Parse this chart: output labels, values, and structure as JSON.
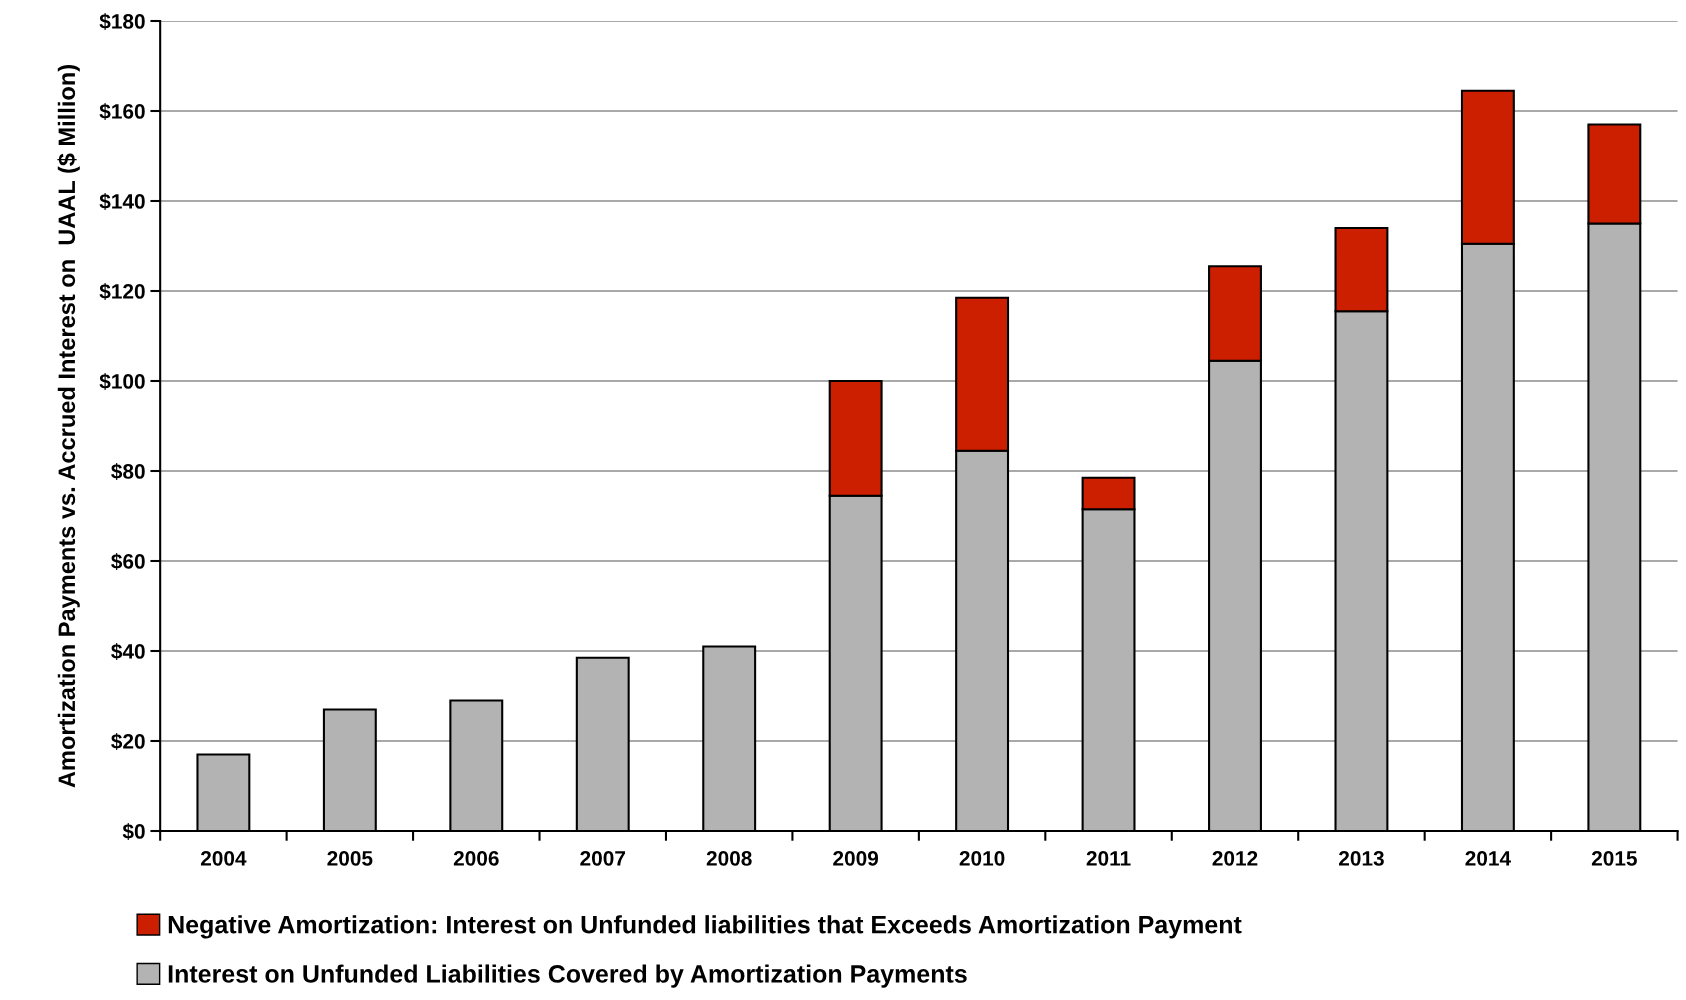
{
  "chart_data": {
    "type": "bar",
    "stacked": true,
    "ylabel": "Amortization Payments vs. Accrued Interest on  UAAL ($ Million)",
    "categories": [
      "2004",
      "2005",
      "2006",
      "2007",
      "2008",
      "2009",
      "2010",
      "2011",
      "2012",
      "2013",
      "2014",
      "2015"
    ],
    "series": [
      {
        "name": "Interest on Unfunded Liabilities Covered by Amortization Payments",
        "color": "#b3b3b3",
        "values": [
          17,
          27,
          29,
          38.5,
          41,
          74.5,
          84.5,
          71.5,
          104.5,
          115.5,
          130.5,
          135
        ]
      },
      {
        "name": "Negative Amortization: Interest on Unfunded liabilities that Exceeds Amortization Payment",
        "color": "#cc1f00",
        "values": [
          null,
          null,
          null,
          null,
          null,
          25.5,
          34,
          7,
          21,
          18.5,
          34,
          22
        ]
      }
    ],
    "ylim": [
      0,
      180
    ],
    "yticks": [
      {
        "value": 0,
        "label": "$0"
      },
      {
        "value": 20,
        "label": "$20"
      },
      {
        "value": 40,
        "label": "$40"
      },
      {
        "value": 60,
        "label": "$60"
      },
      {
        "value": 80,
        "label": "$80"
      },
      {
        "value": 100,
        "label": "$100"
      },
      {
        "value": 120,
        "label": "$120"
      },
      {
        "value": 140,
        "label": "$140"
      },
      {
        "value": 160,
        "label": "$160"
      },
      {
        "value": 180,
        "label": "$180"
      }
    ],
    "grid": "y",
    "legend": "bottom"
  }
}
